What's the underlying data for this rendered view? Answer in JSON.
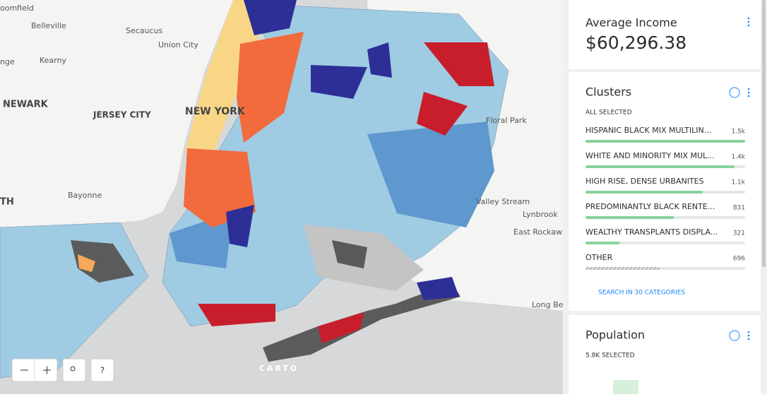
{
  "map": {
    "labels": [
      "oomfield",
      "Belleville",
      "Secaucus",
      "Union City",
      "Kearny",
      "nge",
      "NEWARK",
      "JERSEY CITY",
      "NEW YORK",
      "Floral Park",
      "Bayonne",
      "TH",
      "Valley Stream",
      "Lynbrook",
      "East Rockaw",
      "Long Be"
    ],
    "attribution": "CARTO",
    "help": "?"
  },
  "widgets": {
    "income": {
      "title": "Average Income",
      "value": "$60,296.38"
    },
    "clusters": {
      "title": "Clusters",
      "status": "ALL SELECTED",
      "categories": [
        {
          "label": "HISPANIC BLACK MIX MULTILIN...",
          "value": 1500,
          "value_label": "1.5k"
        },
        {
          "label": "WHITE AND MINORITY MIX MUL...",
          "value": 1400,
          "value_label": "1.4k"
        },
        {
          "label": "HIGH RISE, DENSE URBANITES",
          "value": 1100,
          "value_label": "1.1k"
        },
        {
          "label": "PREDOMINANTLY BLACK RENTE...",
          "value": 831,
          "value_label": "831"
        },
        {
          "label": "WEALTHY TRANSPLANTS DISPLA...",
          "value": 321,
          "value_label": "321"
        },
        {
          "label": "OTHER",
          "value": 696,
          "value_label": "696"
        }
      ],
      "search": "SEARCH IN 30 CATEGORIES"
    },
    "population": {
      "title": "Population",
      "status": "5.8K SELECTED"
    }
  }
}
